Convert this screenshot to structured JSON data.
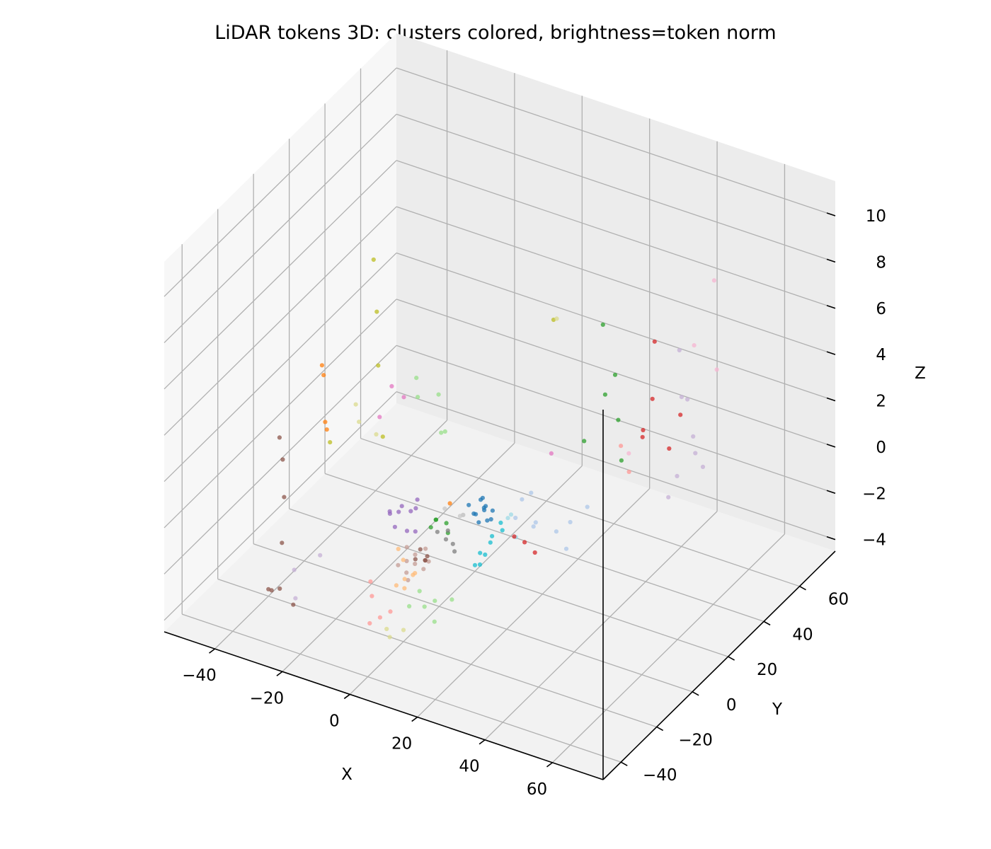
{
  "chart_data": {
    "type": "scatter",
    "projection": "3d",
    "title": "LiDAR tokens 3D: clusters colored, brightness=token norm",
    "xlabel": "X",
    "ylabel": "Y",
    "zlabel": "Z",
    "xlim": [
      -55,
      75
    ],
    "ylim": [
      -50,
      80
    ],
    "zlim": [
      -4.5,
      11.5
    ],
    "xticks": [
      -40,
      -20,
      0,
      20,
      40,
      60
    ],
    "yticks": [
      -40,
      -20,
      0,
      20,
      40,
      60
    ],
    "zticks": [
      -4,
      -2,
      0,
      2,
      4,
      6,
      8,
      10
    ],
    "tick_labels": {
      "x": [
        "−40",
        "−20",
        "0",
        "20",
        "40",
        "60"
      ],
      "y": [
        "−40",
        "−20",
        "0",
        "20",
        "40",
        "60"
      ],
      "z": [
        "−4",
        "−2",
        "0",
        "2",
        "4",
        "6",
        "8",
        "10"
      ]
    },
    "grid": true,
    "legend": "none",
    "series": [
      {
        "color": "#1f77b4",
        "points": [
          [
            6,
            8,
            -0.8
          ],
          [
            8,
            10,
            -0.6
          ],
          [
            7,
            12,
            -0.9
          ],
          [
            9,
            9,
            -0.4
          ],
          [
            5,
            11,
            -1.1
          ],
          [
            10,
            11,
            -0.7
          ],
          [
            6,
            13,
            -0.5
          ],
          [
            8,
            7,
            -1.0
          ],
          [
            7,
            10,
            -0.3
          ],
          [
            9,
            12,
            -1.2
          ],
          [
            4,
            9,
            -0.6
          ],
          [
            10,
            8,
            -0.9
          ]
        ]
      },
      {
        "color": "#aec7e8",
        "points": [
          [
            18,
            20,
            -1.5
          ],
          [
            22,
            24,
            -2
          ],
          [
            15,
            18,
            -0.5
          ],
          [
            24,
            28,
            -1.8
          ],
          [
            20,
            15,
            -1.2
          ],
          [
            26,
            22,
            -2.4
          ],
          [
            14,
            25,
            -0.8
          ],
          [
            28,
            30,
            -1.1
          ],
          [
            12,
            20,
            -1.6
          ]
        ]
      },
      {
        "color": "#ff7f0e",
        "points": [
          [
            -40,
            10,
            3.2
          ],
          [
            -39,
            9,
            2.9
          ],
          [
            -38,
            8,
            1.0
          ],
          [
            -37,
            7,
            0.8
          ],
          [
            0,
            6,
            -0.5
          ]
        ]
      },
      {
        "color": "#ffbb78",
        "points": [
          [
            -8,
            -5,
            -2.5
          ],
          [
            -6,
            -8,
            -3.0
          ],
          [
            -4,
            -6,
            -2.8
          ],
          [
            -10,
            -4,
            -2.2
          ],
          [
            -5,
            -10,
            -3.2
          ],
          [
            -9,
            -7,
            -3.5
          ],
          [
            -3,
            -9,
            -2.6
          ]
        ]
      },
      {
        "color": "#2ca02c",
        "points": [
          [
            -2,
            2,
            -1.0
          ],
          [
            0,
            4,
            -1.2
          ],
          [
            -1,
            0,
            -0.8
          ],
          [
            1,
            3,
            -1.5
          ],
          [
            -3,
            1,
            -1.3
          ],
          [
            30,
            35,
            6.5
          ],
          [
            32,
            38,
            4.2
          ],
          [
            28,
            40,
            3.0
          ],
          [
            34,
            36,
            2.5
          ],
          [
            26,
            32,
            1.5
          ],
          [
            36,
            34,
            1.0
          ]
        ]
      },
      {
        "color": "#98df8a",
        "points": [
          [
            -20,
            25,
            2.5
          ],
          [
            -15,
            28,
            1.8
          ],
          [
            -18,
            22,
            2.0
          ],
          [
            -10,
            20,
            1.0
          ],
          [
            -12,
            26,
            0.5
          ],
          [
            2,
            -12,
            -3.5
          ],
          [
            4,
            -10,
            -3.3
          ],
          [
            6,
            -14,
            -3.8
          ],
          [
            0,
            -11,
            -3.0
          ],
          [
            8,
            -8,
            -3.2
          ],
          [
            -2,
            -13,
            -3.6
          ]
        ]
      },
      {
        "color": "#d62728",
        "points": [
          [
            40,
            45,
            5.5
          ],
          [
            42,
            40,
            3.5
          ],
          [
            45,
            50,
            2.2
          ],
          [
            38,
            42,
            1.5
          ],
          [
            48,
            38,
            1.8
          ],
          [
            35,
            48,
            1.2
          ],
          [
            20,
            10,
            -1.5
          ],
          [
            22,
            12,
            -2.0
          ],
          [
            18,
            8,
            -1.2
          ]
        ]
      },
      {
        "color": "#ff9896",
        "points": [
          [
            -12,
            -15,
            -3.5
          ],
          [
            -8,
            -18,
            -4.0
          ],
          [
            -14,
            -12,
            -3.2
          ],
          [
            -6,
            -16,
            -3.8
          ],
          [
            -10,
            -20,
            -4.2
          ],
          [
            30,
            45,
            0.5
          ],
          [
            34,
            42,
            -0.2
          ]
        ]
      },
      {
        "color": "#9467bd",
        "points": [
          [
            -10,
            -2,
            -0.5
          ],
          [
            -12,
            0,
            -1.0
          ],
          [
            -8,
            2,
            -0.8
          ],
          [
            -11,
            -4,
            -1.3
          ],
          [
            -9,
            -1,
            -1.6
          ],
          [
            -7,
            1,
            -0.3
          ],
          [
            -13,
            -3,
            -0.9
          ],
          [
            -6,
            -2,
            -1.4
          ],
          [
            -10,
            3,
            -1.1
          ],
          [
            -12,
            -5,
            -0.6
          ]
        ]
      },
      {
        "color": "#c5b0d5",
        "points": [
          [
            50,
            40,
            6.0
          ],
          [
            55,
            35,
            4.5
          ],
          [
            60,
            30,
            2.8
          ],
          [
            48,
            45,
            3.5
          ],
          [
            58,
            38,
            1.5
          ],
          [
            52,
            30,
            0.5
          ],
          [
            44,
            50,
            -0.5
          ],
          [
            -35,
            -15,
            -3.5
          ],
          [
            -32,
            -20,
            -4.2
          ],
          [
            62,
            25,
            4.0
          ],
          [
            -30,
            -10,
            -3.0
          ]
        ]
      },
      {
        "color": "#8c564b",
        "points": [
          [
            -42,
            -10,
            1.5
          ],
          [
            -40,
            -12,
            0.8
          ],
          [
            -38,
            -15,
            -0.5
          ],
          [
            -36,
            -20,
            -2.0
          ],
          [
            -34,
            -25,
            -3.5
          ],
          [
            -40,
            -20,
            -4.2
          ],
          [
            -38,
            -22,
            -4.0
          ],
          [
            -30,
            -25,
            -4.0
          ],
          [
            -4,
            -3,
            -2.0
          ],
          [
            -2,
            -4,
            -2.3
          ],
          [
            -6,
            -2,
            -2.6
          ],
          [
            -1,
            -6,
            -2.1
          ],
          [
            -3,
            -1,
            -2.4
          ]
        ]
      },
      {
        "color": "#c49c94",
        "points": [
          [
            -5,
            -4,
            -2.2
          ],
          [
            -7,
            -5,
            -2.5
          ],
          [
            -3,
            -2,
            -2.0
          ],
          [
            -6,
            -7,
            -2.8
          ],
          [
            -4,
            -6,
            -2.4
          ],
          [
            -2,
            -5,
            -2.6
          ],
          [
            -8,
            -3,
            -2.1
          ],
          [
            -5,
            -8,
            -3.0
          ],
          [
            -1,
            -4,
            -2.3
          ],
          [
            -9,
            -6,
            -2.7
          ]
        ]
      },
      {
        "color": "#e377c2",
        "points": [
          [
            -22,
            15,
            2.8
          ],
          [
            -20,
            18,
            2.2
          ],
          [
            -24,
            12,
            1.6
          ],
          [
            20,
            25,
            1.2
          ]
        ]
      },
      {
        "color": "#f7b6d2",
        "points": [
          [
            55,
            50,
            8.5
          ],
          [
            60,
            42,
            5.5
          ],
          [
            48,
            52,
            5.2
          ],
          [
            35,
            40,
            0.8
          ]
        ]
      },
      {
        "color": "#7f7f7f",
        "points": [
          [
            2,
            0,
            -1.5
          ],
          [
            3,
            2,
            -1.8
          ],
          [
            0,
            -1,
            -1.2
          ],
          [
            4,
            1,
            -2.0
          ],
          [
            1,
            3,
            -1.4
          ]
        ]
      },
      {
        "color": "#c7c7c7",
        "points": [
          [
            5,
            4,
            -0.6
          ],
          [
            3,
            6,
            -0.9
          ],
          [
            6,
            2,
            -0.4
          ],
          [
            -1,
            5,
            -0.7
          ]
        ]
      },
      {
        "color": "#bcbd22",
        "points": [
          [
            -30,
            20,
            7.5
          ],
          [
            -28,
            18,
            5.5
          ],
          [
            -26,
            15,
            3.5
          ],
          [
            -22,
            10,
            1.0
          ],
          [
            -35,
            5,
            0.5
          ],
          [
            18,
            30,
            6.5
          ]
        ]
      },
      {
        "color": "#dbdb8d",
        "points": [
          [
            -30,
            10,
            2.0
          ],
          [
            -28,
            8,
            1.5
          ],
          [
            -5,
            -20,
            -4.2
          ],
          [
            -3,
            -22,
            -4.3
          ],
          [
            -25,
            12,
            0.8
          ],
          [
            0,
            -20,
            -4.0
          ],
          [
            20,
            28,
            6.8
          ]
        ]
      },
      {
        "color": "#17becf",
        "points": [
          [
            10,
            4,
            -2.0
          ],
          [
            12,
            6,
            -1.6
          ],
          [
            11,
            2,
            -2.3
          ],
          [
            13,
            5,
            -1.2
          ],
          [
            9,
            3,
            -2.5
          ],
          [
            14,
            8,
            -0.8
          ],
          [
            12,
            3,
            -1.9
          ],
          [
            15,
            7,
            -1.0
          ]
        ]
      },
      {
        "color": "#9edae5",
        "points": [
          [
            16,
            10,
            -0.5
          ],
          [
            14,
            12,
            -0.9
          ],
          [
            18,
            9,
            -1.3
          ]
        ]
      }
    ]
  }
}
